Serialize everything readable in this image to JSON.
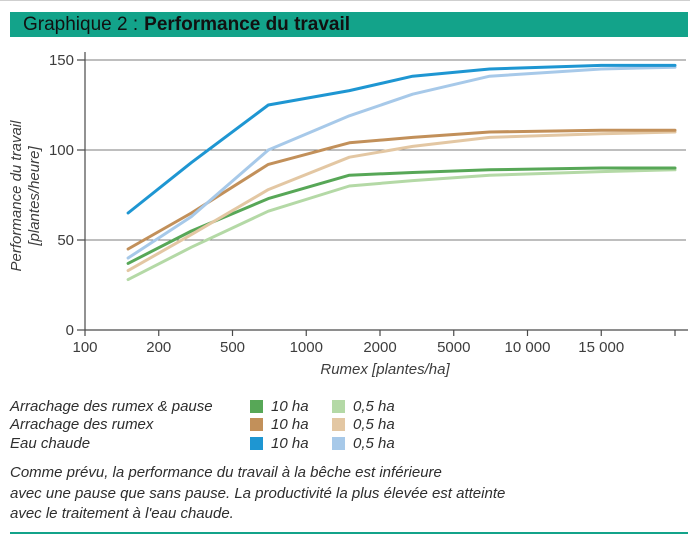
{
  "header": {
    "prefix": "Graphique 2 :",
    "title": "Performance du travail",
    "bar_color": "#13a38a"
  },
  "chart_data": {
    "type": "line",
    "title": "Performance du travail",
    "xlabel": "Rumex [plantes/ha]",
    "ylabel_line1": "Performance du travail",
    "ylabel_line2": "[plantes/heure]",
    "x_scale": "log-segmented",
    "x_ticks": [
      100,
      200,
      500,
      1000,
      2000,
      5000,
      10000,
      15000,
      20000
    ],
    "x_tick_labels": [
      "100",
      "200",
      "500",
      "1000",
      "2000",
      "5000",
      "10 000",
      "15 000",
      ""
    ],
    "y_ticks": [
      0,
      50,
      100,
      150
    ],
    "ylim": [
      0,
      150
    ],
    "grid": "horizontal",
    "legend_position": "below",
    "x": [
      150,
      300,
      700,
      1500,
      3000,
      7000,
      15000,
      20000
    ],
    "series": [
      {
        "name": "Arrachage des rumex & pause — 0,5 ha",
        "color": "#b4d9a6",
        "values": [
          28,
          46,
          66,
          80,
          83,
          86,
          88,
          89
        ]
      },
      {
        "name": "Arrachage des rumex & pause — 10 ha",
        "color": "#57a757",
        "values": [
          37,
          55,
          73,
          86,
          87.5,
          89,
          90,
          90
        ]
      },
      {
        "name": "Arrachage des rumex — 0,5 ha",
        "color": "#e3c7a3",
        "values": [
          33,
          53,
          78,
          96,
          102,
          107,
          109,
          110
        ]
      },
      {
        "name": "Arrachage des rumex — 10 ha",
        "color": "#c2905a",
        "values": [
          45,
          65,
          92,
          104,
          107,
          110,
          111,
          111
        ]
      },
      {
        "name": "Eau chaude — 0,5 ha",
        "color": "#a7c9e9",
        "values": [
          40,
          63,
          100,
          119,
          131,
          141,
          145,
          146
        ]
      },
      {
        "name": "Eau chaude — 10 ha",
        "color": "#1e96d2",
        "values": [
          65,
          93,
          125,
          133,
          141,
          145,
          147,
          147
        ]
      }
    ]
  },
  "legend": {
    "rows": [
      {
        "label": "Arrachage des rumex & pause",
        "size1_label": "10 ha",
        "size1_color": "#57a757",
        "size2_label": "0,5 ha",
        "size2_color": "#b4d9a6"
      },
      {
        "label": "Arrachage des rumex",
        "size1_label": "10 ha",
        "size1_color": "#c2905a",
        "size2_label": "0,5 ha",
        "size2_color": "#e3c7a3"
      },
      {
        "label": "Eau chaude",
        "size1_label": "10 ha",
        "size1_color": "#1e96d2",
        "size2_label": "0,5 ha",
        "size2_color": "#a7c9e9"
      }
    ]
  },
  "caption": {
    "lines": [
      "Comme prévu, la performance du travail à la bêche est inférieure",
      "avec une pause que sans pause. La productivité la plus élevée est atteinte",
      "avec le traitement à l'eau chaude."
    ]
  },
  "colors": {
    "header_bar": "#13a38a",
    "bottom_rule": "#13a38a",
    "gridline": "#7d7d7d",
    "axis": "#4a4a4a",
    "text": "#3d3d3d"
  }
}
